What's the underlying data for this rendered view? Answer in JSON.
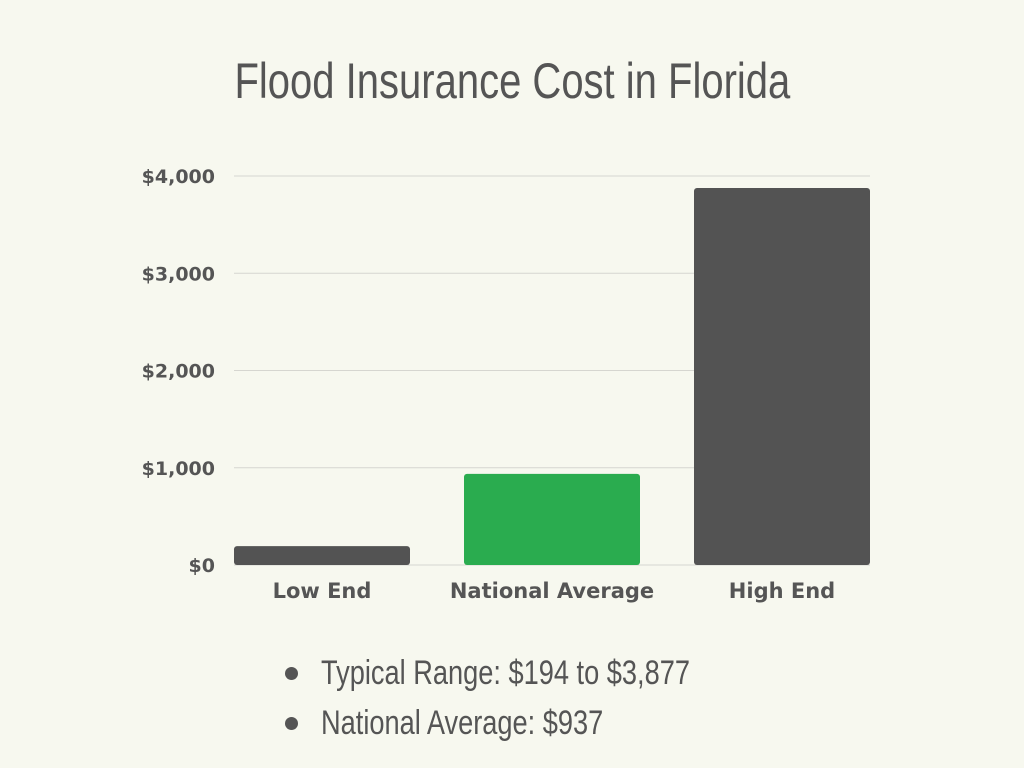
{
  "chart_data": {
    "type": "bar",
    "title": "Flood Insurance Cost in Florida",
    "categories": [
      "Low End",
      "National Average",
      "High End"
    ],
    "values": [
      194,
      937,
      3877
    ],
    "colors": [
      "#535353",
      "#2aac4f",
      "#535353"
    ],
    "xlabel": "",
    "ylabel": "",
    "ylim": [
      0,
      4000
    ],
    "yticks": [
      0,
      1000,
      2000,
      3000,
      4000
    ],
    "ytick_labels": [
      "$0",
      "$1,000",
      "$2,000",
      "$3,000",
      "$4,000"
    ],
    "grid": true,
    "legend": "none"
  },
  "notes": [
    "Typical Range: $194 to $3,877",
    "National Average: $937"
  ]
}
